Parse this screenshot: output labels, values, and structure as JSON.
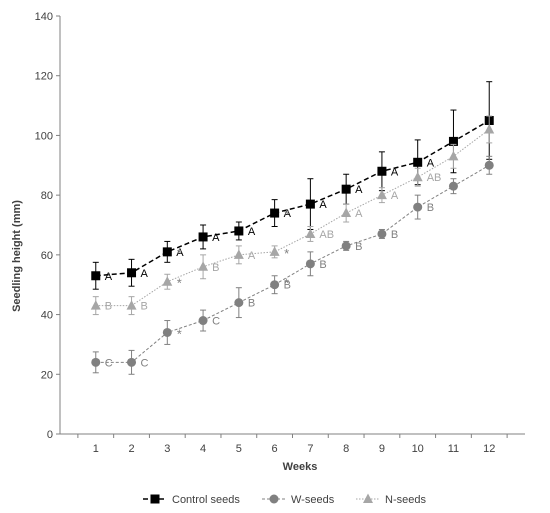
{
  "chart_data": {
    "type": "line",
    "title": "",
    "xlabel": "Weeks",
    "ylabel": "Seedling height (mm)",
    "x": [
      1,
      2,
      3,
      4,
      5,
      6,
      7,
      8,
      9,
      10,
      11,
      12
    ],
    "ylim": [
      0,
      140
    ],
    "yticks": [
      0,
      20,
      40,
      60,
      80,
      100,
      120,
      140
    ],
    "grid": false,
    "legend": "bottom",
    "series": [
      {
        "name": "Control seeds",
        "color": "#000000",
        "marker": "square",
        "values": [
          53,
          54,
          61,
          66,
          68,
          74,
          77,
          82,
          88,
          91,
          98,
          105
        ],
        "errors": [
          4.5,
          4.5,
          3.5,
          4,
          3,
          4.5,
          8.5,
          5,
          6.5,
          7.5,
          10.5,
          13
        ],
        "letters": [
          "A",
          "A",
          "A",
          "A",
          "A",
          "A",
          "A",
          "A",
          "A",
          "A",
          "",
          ""
        ]
      },
      {
        "name": "W-seeds",
        "color": "#808080",
        "marker": "circle",
        "values": [
          24,
          24,
          34,
          38,
          44,
          50,
          57,
          63,
          67,
          76,
          83,
          90
        ],
        "errors": [
          3.5,
          4,
          4,
          3.5,
          5,
          3,
          4,
          1.5,
          1.5,
          4,
          2.5,
          3
        ],
        "letters": [
          "C",
          "C",
          "",
          "C",
          "B",
          "B",
          "B",
          "B",
          "B",
          "B",
          "",
          ""
        ]
      },
      {
        "name": "N-seeds",
        "color": "#a6a6a6",
        "marker": "triangle",
        "values": [
          43,
          43,
          51,
          56,
          60,
          61,
          67,
          74,
          80,
          86,
          93,
          102
        ],
        "errors": [
          3,
          3,
          2.5,
          4,
          3,
          2,
          2.5,
          3,
          2.5,
          3,
          4,
          4.5
        ],
        "letters": [
          "B",
          "B",
          "",
          "B",
          "A",
          "",
          "AB",
          "A",
          "A",
          "AB",
          "",
          ""
        ]
      }
    ],
    "asterisks": [
      {
        "x": 3,
        "y": 61
      },
      {
        "x": 3,
        "y": 51
      },
      {
        "x": 3,
        "y": 34
      },
      {
        "x": 6,
        "y": 74
      },
      {
        "x": 6,
        "y": 61
      },
      {
        "x": 6,
        "y": 51
      }
    ]
  }
}
